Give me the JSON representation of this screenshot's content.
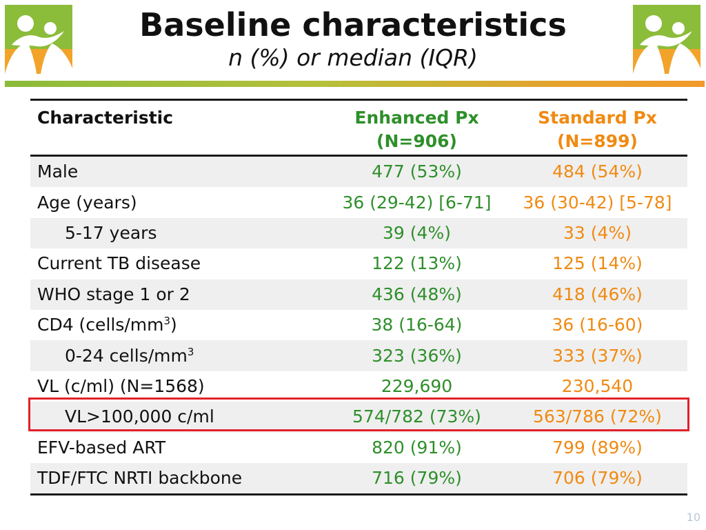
{
  "slide": {
    "title": "Baseline characteristics",
    "subtitle": "n (%) or median (IQR)",
    "page_number": "10"
  },
  "colors": {
    "enhanced": "#2e8f2a",
    "standard": "#f08a12",
    "highlight": "#e3202a",
    "logo_green": "#8bbc3a",
    "logo_orange": "#f2a32a"
  },
  "table": {
    "headers": {
      "characteristic": "Characteristic",
      "enhanced_line1": "Enhanced Px",
      "enhanced_line2": "(N=906)",
      "standard_line1": "Standard Px",
      "standard_line2": "(N=899)"
    },
    "rows": [
      {
        "label": "Male",
        "enhanced": "477 (53%)",
        "standard": "484 (54%)"
      },
      {
        "label": "Age (years)",
        "enhanced": "36 (29-42) [6-71]",
        "standard": "36 (30-42) [5-78]"
      },
      {
        "label": "5-17 years",
        "enhanced": "39 (4%)",
        "standard": "33 (4%)"
      },
      {
        "label": "Current TB disease",
        "enhanced": "122 (13%)",
        "standard": "125 (14%)"
      },
      {
        "label": "WHO stage 1 or 2",
        "enhanced": "436 (48%)",
        "standard": "418 (46%)"
      },
      {
        "label": "CD4 (cells/mm",
        "label_sup": "3",
        "label_suffix": ")",
        "enhanced": "38 (16-64)",
        "standard": "36 (16-60)"
      },
      {
        "label": "0-24 cells/mm",
        "label_sup": "3",
        "enhanced": "323 (36%)",
        "standard": "333 (37%)"
      },
      {
        "label": "VL (c/ml) (N=1568)",
        "enhanced": "229,690",
        "standard": "230,540"
      },
      {
        "label": "VL>100,000 c/ml",
        "enhanced": "574/782 (73%)",
        "standard": "563/786 (72%)"
      },
      {
        "label": "EFV-based ART",
        "enhanced": "820 (91%)",
        "standard": "799 (89%)"
      },
      {
        "label": "TDF/FTC NRTI backbone",
        "enhanced": "716 (79%)",
        "standard": "706 (79%)"
      }
    ]
  }
}
